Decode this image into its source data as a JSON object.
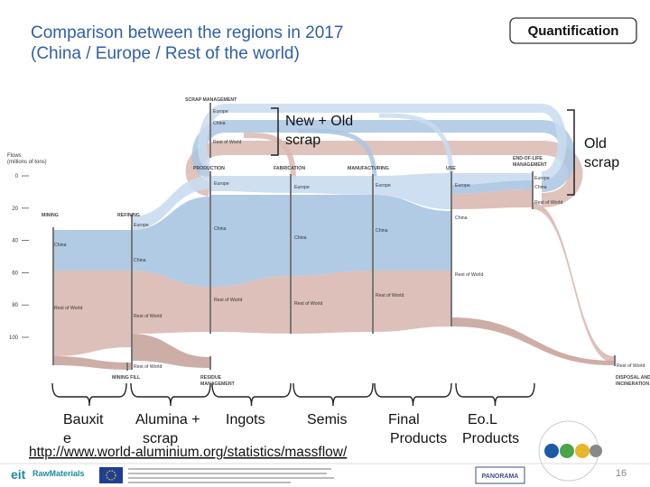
{
  "title": [
    "Comparison between the regions in 2017",
    "(China / Europe / Rest of the world)"
  ],
  "badge": "Quantification",
  "callouts": {
    "new_old_scrap": [
      "New + Old",
      "scrap"
    ],
    "old_scrap": [
      "Old",
      "scrap"
    ]
  },
  "sankey": {
    "axis_label": [
      "Flows",
      "(millions of tons)"
    ],
    "axis_ticks": [
      0,
      20,
      40,
      60,
      80,
      100
    ],
    "nodes": [
      {
        "name": [
          "SCRAP MANAGEMENT"
        ],
        "regions": [
          "Europe",
          "China",
          "Rest of World"
        ]
      },
      {
        "name": [
          "PRODUCTION"
        ],
        "regions": [
          "Europe",
          "China",
          "Rest of World"
        ]
      },
      {
        "name": [
          "FABRICATION"
        ],
        "regions": [
          "Europe",
          "China",
          "Rest of World"
        ]
      },
      {
        "name": [
          "MANUFACTURING"
        ],
        "regions": [
          "Europe",
          "China",
          "Rest of World"
        ]
      },
      {
        "name": [
          "USE"
        ],
        "regions": [
          "Europe",
          "China",
          "Rest of World"
        ]
      },
      {
        "name": [
          "END-OF-LIFE",
          "MANAGEMENT"
        ],
        "regions": [
          "Europe",
          "China",
          "Rest of World"
        ]
      },
      {
        "name": [
          "MINING"
        ],
        "regions": [
          "China",
          "Rest of World"
        ]
      },
      {
        "name": [
          "REFINING"
        ],
        "regions": [
          "Europe",
          "China",
          "Rest of World"
        ]
      },
      {
        "name": [
          "MINING FILL"
        ],
        "regions": [
          "Rest of World"
        ]
      },
      {
        "name": [
          "RESIDUE",
          "MANAGEMENT"
        ],
        "regions": []
      },
      {
        "name": [
          "DISPOSAL AND",
          "INCINERATION"
        ],
        "regions": [
          "Rest of World"
        ]
      }
    ]
  },
  "stage_labels": [
    [
      "Bauxit",
      "e"
    ],
    [
      "Alumina +",
      "scrap"
    ],
    [
      "Ingots"
    ],
    [
      "Semis"
    ],
    [
      "Final",
      "Products"
    ],
    [
      "Eo.L",
      "Products"
    ]
  ],
  "source": "http://www.world-aluminium.org/statistics/massflow/",
  "footer": {
    "logo": [
      "eit",
      "RawMaterials"
    ],
    "partner": "PANORAMA",
    "page": "16"
  }
}
